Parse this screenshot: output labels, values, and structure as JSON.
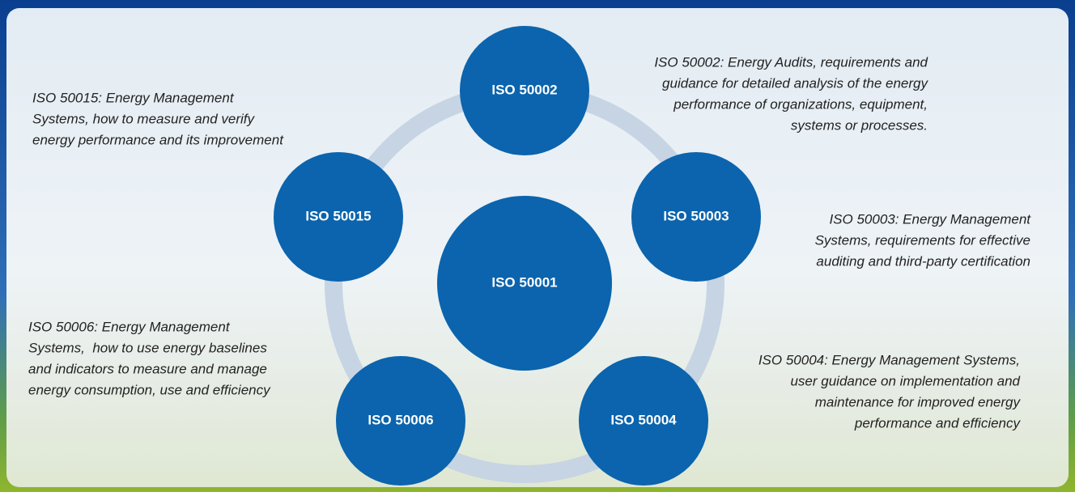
{
  "center": {
    "label": "ISO 50001"
  },
  "nodes": [
    {
      "label": "ISO 50002",
      "description": [
        "ISO 50002: Energy Audits, requirements and",
        "guidance for detailed analysis of the energy",
        "performance of organizations, equipment,",
        "systems or processes."
      ]
    },
    {
      "label": "ISO 50003",
      "description": [
        "ISO 50003: Energy Management",
        "Systems, requirements for effective",
        "auditing and third-party certification"
      ]
    },
    {
      "label": "ISO 50004",
      "description": [
        "ISO 50004: Energy Management Systems,",
        "user guidance on implementation and",
        "maintenance for improved energy",
        "performance and efficiency"
      ]
    },
    {
      "label": "ISO 50006",
      "description": [
        "ISO 50006: Energy Management",
        "Systems,  how to use energy baselines",
        "and indicators to measure and manage",
        "energy consumption, use and efficiency"
      ]
    },
    {
      "label": "ISO 50015",
      "description": [
        "ISO 50015: Energy Management",
        "Systems, how to measure and verify",
        "energy performance and its improvement"
      ]
    }
  ]
}
